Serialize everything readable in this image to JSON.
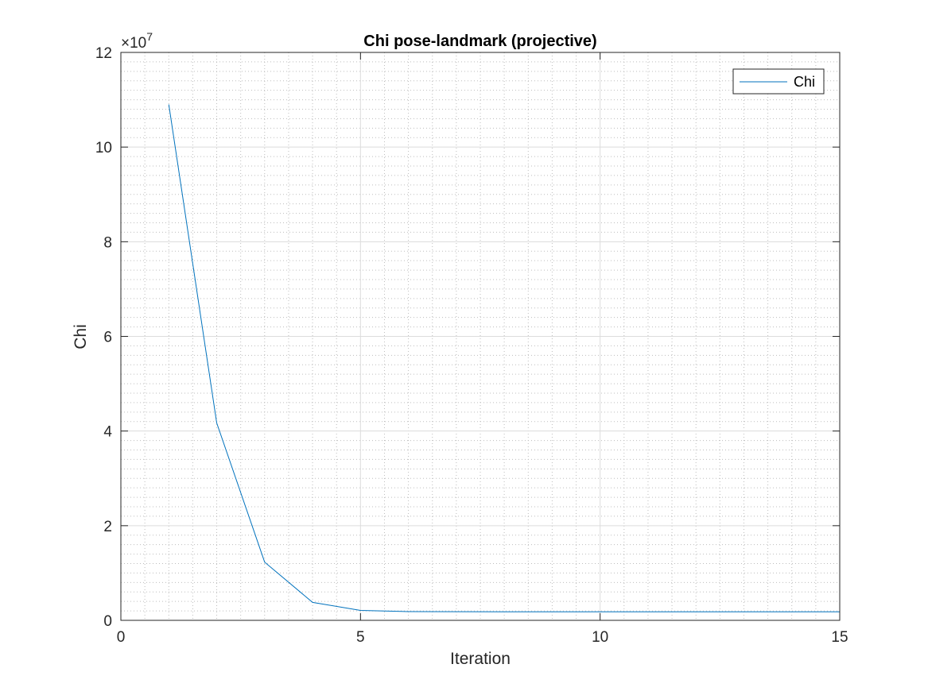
{
  "chart_data": {
    "type": "line",
    "title": "Chi pose-landmark (projective)",
    "xlabel": "Iteration",
    "ylabel": "Chi",
    "y_multiplier_base": "×10",
    "y_multiplier_exponent": "7",
    "y_scale_factor": 10000000,
    "xlim": [
      0,
      15
    ],
    "ylim": [
      0,
      12
    ],
    "xticks": [
      0,
      5,
      10,
      15
    ],
    "xtick_labels": [
      "0",
      "5",
      "10",
      "15"
    ],
    "yticks": [
      0,
      2,
      4,
      6,
      8,
      10,
      12
    ],
    "ytick_labels": [
      "0",
      "2",
      "4",
      "6",
      "8",
      "10",
      "12"
    ],
    "grid": true,
    "minor_grid": true,
    "legend_position": "top-right",
    "series": [
      {
        "name": "Chi",
        "color": "#0072BD",
        "x": [
          1,
          2,
          3,
          4,
          5,
          6,
          7,
          8,
          9,
          10,
          11,
          12,
          13,
          14,
          15
        ],
        "y": [
          10.9,
          4.17,
          1.23,
          0.38,
          0.21,
          0.185,
          0.182,
          0.181,
          0.181,
          0.181,
          0.181,
          0.181,
          0.181,
          0.181,
          0.181
        ]
      }
    ]
  }
}
